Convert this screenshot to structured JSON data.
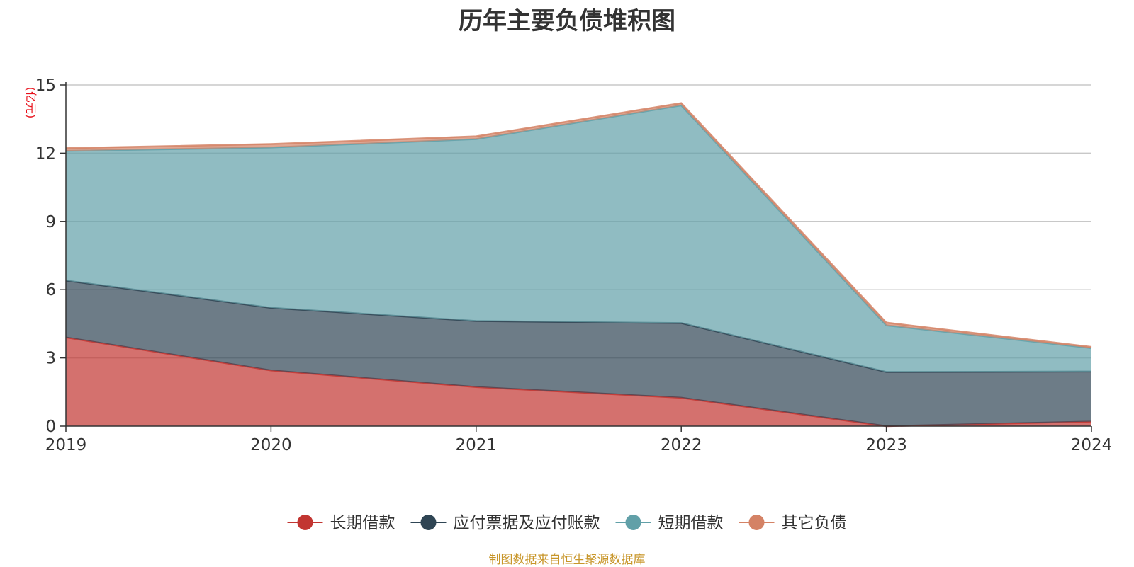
{
  "chart_data": {
    "type": "area",
    "stacked": true,
    "title": "历年主要负债堆积图",
    "ylabel": "(亿元)",
    "x": [
      "2019",
      "2020",
      "2021",
      "2022",
      "2023",
      "2024"
    ],
    "ylim": [
      0,
      15
    ],
    "yticks": [
      0,
      3,
      6,
      9,
      12,
      15
    ],
    "grid": true,
    "legend_position": "bottom",
    "series": [
      {
        "name": "长期借款",
        "color": "#c23531",
        "values": [
          3.9,
          2.45,
          1.72,
          1.25,
          0.0,
          0.2
        ]
      },
      {
        "name": "应付票据及应付账款",
        "color": "#2f4554",
        "values": [
          2.5,
          2.75,
          2.9,
          3.28,
          2.38,
          2.2
        ]
      },
      {
        "name": "短期借款",
        "color": "#61a0a8",
        "values": [
          5.7,
          7.05,
          8.0,
          9.57,
          2.05,
          1.03
        ]
      },
      {
        "name": "其它负债",
        "color": "#d48265",
        "values": [
          0.12,
          0.15,
          0.12,
          0.1,
          0.12,
          0.05
        ]
      }
    ]
  },
  "footer": {
    "source": "制图数据来自恒生聚源数据库"
  }
}
